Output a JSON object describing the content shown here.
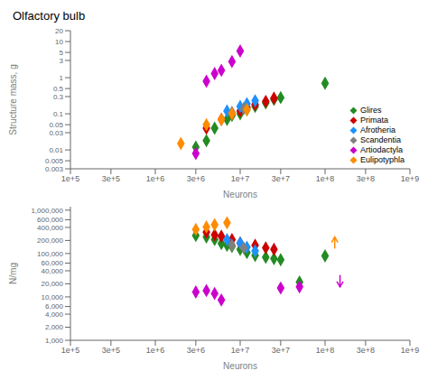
{
  "chart_data": [
    {
      "type": "scatter",
      "title": "Olfactory bulb",
      "xlabel": "Neurons",
      "ylabel": "Structure mass, g",
      "log": true,
      "xlim": [
        100000,
        1000000000
      ],
      "ylim": [
        0.003,
        20
      ],
      "xticks": [
        {
          "value": 100000,
          "label": "1e+5"
        },
        {
          "value": 300000,
          "label": "3e+5"
        },
        {
          "value": 1000000,
          "label": "1e+6"
        },
        {
          "value": 3000000,
          "label": "3e+6"
        },
        {
          "value": 10000000,
          "label": "1e+7"
        },
        {
          "value": 30000000,
          "label": "3e+7"
        },
        {
          "value": 100000000,
          "label": "1e+8"
        },
        {
          "value": 300000000,
          "label": "3e+8"
        },
        {
          "value": 1000000000,
          "label": "1e+9"
        }
      ],
      "yticks": [
        0.003,
        0.005,
        0.01,
        0.03,
        0.05,
        0.1,
        0.3,
        0.5,
        1,
        3,
        5,
        10,
        20
      ],
      "legend": "lower right",
      "series": [
        {
          "name": "Glires",
          "color": "#228B22",
          "marker": "diamond",
          "x": [
            3000000,
            4000000,
            5000000,
            7000000,
            8000000,
            10000000,
            12000000,
            15000000,
            20000000,
            25000000,
            30000000,
            100000000
          ],
          "values": [
            0.012,
            0.018,
            0.04,
            0.07,
            0.09,
            0.1,
            0.13,
            0.16,
            0.2,
            0.25,
            0.28,
            0.7
          ]
        },
        {
          "name": "Primata",
          "color": "#CC0000",
          "marker": "diamond",
          "x": [
            4000000,
            6000000,
            8000000,
            10000000,
            12000000,
            15000000,
            20000000,
            25000000
          ],
          "values": [
            0.04,
            0.07,
            0.1,
            0.12,
            0.15,
            0.18,
            0.22,
            0.27
          ]
        },
        {
          "name": "Afrotheria",
          "color": "#1E90FF",
          "marker": "diamond",
          "x": [
            7000000,
            10000000,
            12000000,
            15000000
          ],
          "values": [
            0.12,
            0.16,
            0.19,
            0.23
          ]
        },
        {
          "name": "Scandentia",
          "color": "#808080",
          "marker": "diamond",
          "x": [
            8000000,
            11000000
          ],
          "values": [
            0.11,
            0.14
          ]
        },
        {
          "name": "Artiodactyla",
          "color": "#CC00CC",
          "marker": "diamond",
          "x": [
            3000000,
            4000000,
            5000000,
            6000000,
            8000000,
            10000000
          ],
          "values": [
            0.008,
            0.8,
            1.3,
            1.6,
            2.8,
            5.5
          ]
        },
        {
          "name": "Eulipotyphla",
          "color": "#FF8C00",
          "marker": "diamond",
          "x": [
            2000000,
            4000000,
            6000000,
            8000000,
            12000000
          ],
          "values": [
            0.015,
            0.05,
            0.07,
            0.1,
            0.13
          ]
        }
      ]
    },
    {
      "type": "scatter",
      "xlabel": "Neurons",
      "ylabel": "N/mg",
      "log": true,
      "xlim": [
        100000,
        1000000000
      ],
      "ylim": [
        1000,
        1200000
      ],
      "xticks": [
        {
          "value": 100000,
          "label": "1e+5"
        },
        {
          "value": 300000,
          "label": "3e+5"
        },
        {
          "value": 1000000,
          "label": "1e+6"
        },
        {
          "value": 3000000,
          "label": "3e+6"
        },
        {
          "value": 10000000,
          "label": "1e+7"
        },
        {
          "value": 30000000,
          "label": "3e+7"
        },
        {
          "value": 100000000,
          "label": "1e+8"
        },
        {
          "value": 300000000,
          "label": "3e+8"
        },
        {
          "value": 1000000000,
          "label": "1e+9"
        }
      ],
      "yticks": [
        {
          "value": 1000,
          "label": "1,000"
        },
        {
          "value": 2000,
          "label": "2,000"
        },
        {
          "value": 4000,
          "label": "4,000"
        },
        {
          "value": 6000,
          "label": "6,000"
        },
        {
          "value": 10000,
          "label": "10,000"
        },
        {
          "value": 20000,
          "label": "20,000"
        },
        {
          "value": 40000,
          "label": "40,000"
        },
        {
          "value": 60000,
          "label": "60,000"
        },
        {
          "value": 100000,
          "label": "100,000"
        },
        {
          "value": 200000,
          "label": "200,000"
        },
        {
          "value": 400000,
          "label": "400,000"
        },
        {
          "value": 600000,
          "label": "600,000"
        },
        {
          "value": 1000000,
          "label": "1,000,000"
        }
      ],
      "series": [
        {
          "name": "Glires",
          "color": "#228B22",
          "marker": "diamond",
          "x": [
            3000000,
            4000000,
            5000000,
            6000000,
            7000000,
            8000000,
            10000000,
            12000000,
            15000000,
            20000000,
            25000000,
            30000000,
            50000000,
            100000000
          ],
          "values": [
            260000,
            240000,
            210000,
            170000,
            155000,
            145000,
            125000,
            105000,
            90000,
            82000,
            76000,
            72000,
            22000,
            88000
          ]
        },
        {
          "name": "Primata",
          "color": "#CC0000",
          "marker": "diamond",
          "x": [
            4000000,
            5000000,
            6000000,
            8000000,
            10000000,
            15000000,
            20000000,
            25000000
          ],
          "values": [
            310000,
            270000,
            250000,
            210000,
            175000,
            155000,
            135000,
            125000
          ]
        },
        {
          "name": "Afrotheria",
          "color": "#1E90FF",
          "marker": "diamond",
          "x": [
            7000000,
            10000000,
            12000000,
            15000000
          ],
          "values": [
            210000,
            175000,
            140000,
            115000
          ]
        },
        {
          "name": "Scandentia",
          "color": "#808080",
          "marker": "diamond",
          "x": [
            8000000,
            11000000
          ],
          "values": [
            155000,
            135000
          ]
        },
        {
          "name": "Artiodactyla",
          "color": "#CC00CC",
          "marker": "diamond",
          "x": [
            3000000,
            4000000,
            5000000,
            6000000,
            30000000,
            50000000
          ],
          "values": [
            13000,
            14000,
            12000,
            8500,
            16000,
            17000
          ]
        },
        {
          "name": "Eulipotyphla",
          "color": "#FF8C00",
          "marker": "diamond",
          "x": [
            3000000,
            4000000,
            5000000,
            7000000
          ],
          "values": [
            360000,
            410000,
            460000,
            510000
          ]
        }
      ],
      "annotations": [
        {
          "type": "arrow",
          "x": 130000000,
          "y_from": 130000,
          "y_to": 240000,
          "color": "#FF8C00"
        },
        {
          "type": "arrow",
          "x": 150000000,
          "y_from": 32000,
          "y_to": 17000,
          "color": "#CC00CC"
        }
      ]
    }
  ]
}
